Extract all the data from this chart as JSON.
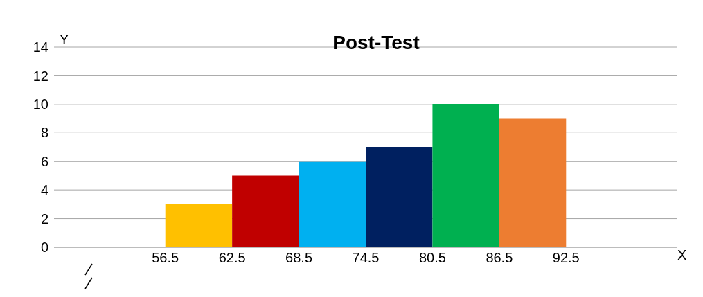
{
  "chart_data": {
    "type": "histogram",
    "title": "Post-Test",
    "xlabel": "X",
    "ylabel": "Y",
    "bins": [
      56.5,
      62.5,
      68.5,
      74.5,
      80.5,
      86.5,
      92.5
    ],
    "values": [
      3,
      5,
      6,
      7,
      10,
      9
    ],
    "colors": [
      "#ffc000",
      "#c00000",
      "#00b0f0",
      "#002060",
      "#00b050",
      "#ed7d31"
    ],
    "xlim": [
      46.5,
      102.5
    ],
    "xticks": [
      56.5,
      62.5,
      68.5,
      74.5,
      80.5,
      86.5,
      92.5
    ],
    "ylim": [
      0,
      14
    ],
    "yticks": [
      0,
      2,
      4,
      6,
      8,
      10,
      12,
      14
    ],
    "grid": "y"
  }
}
